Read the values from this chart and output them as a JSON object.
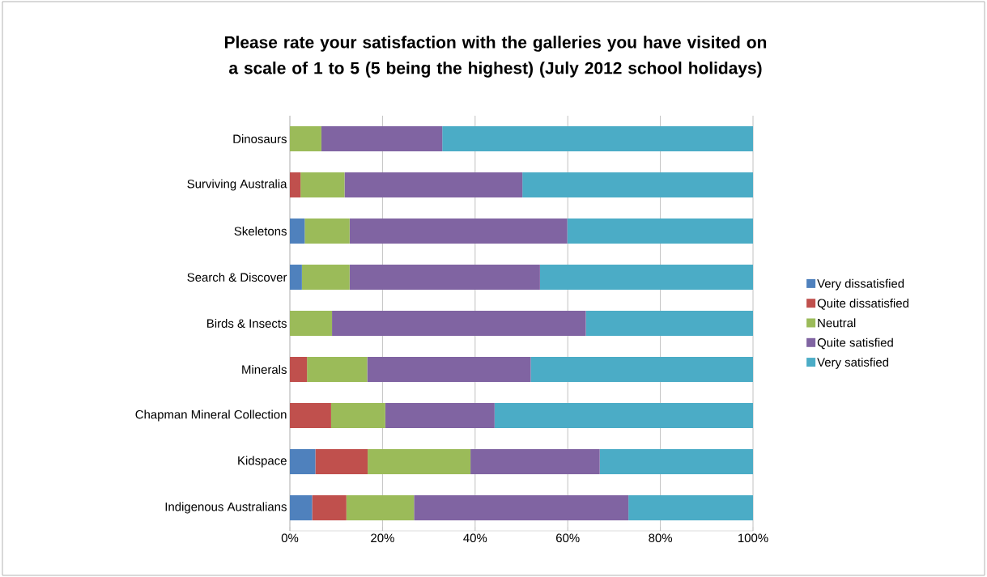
{
  "chart_data": {
    "type": "bar",
    "orientation": "horizontal",
    "stacked": true,
    "title": "Please rate your satisfaction with the galleries you have visited on a scale of 1 to 5 (5 being the highest) (July 2012 school holidays)",
    "categories": [
      "Dinosaurs",
      "Surviving Australia",
      "Skeletons",
      "Search & Discover",
      "Birds & Insects",
      "Minerals",
      "Chapman Mineral Collection",
      "Kidspace",
      "Indigenous Australians"
    ],
    "series": [
      {
        "name": "Very dissatisfied",
        "color": "#4f81bd",
        "values": [
          0,
          0,
          3.2,
          2.6,
          0,
          0,
          0,
          5.5,
          4.8
        ]
      },
      {
        "name": "Quite dissatisfied",
        "color": "#c0504d",
        "values": [
          0,
          2.3,
          0,
          0,
          0,
          3.7,
          8.9,
          11.3,
          7.4
        ]
      },
      {
        "name": "Neutral",
        "color": "#9bbb59",
        "values": [
          6.8,
          9.5,
          9.7,
          10.3,
          9.1,
          13.0,
          11.7,
          22.2,
          14.6
        ]
      },
      {
        "name": "Quite satisfied",
        "color": "#8064a2",
        "values": [
          26.1,
          38.4,
          47.0,
          41.1,
          54.8,
          35.3,
          23.6,
          27.9,
          46.3
        ]
      },
      {
        "name": "Very satisfied",
        "color": "#4bacc6",
        "values": [
          67.1,
          49.8,
          40.1,
          46.0,
          36.1,
          48.0,
          55.8,
          33.1,
          26.9
        ]
      }
    ],
    "xlim": [
      0,
      100
    ],
    "xticks": [
      {
        "value": 0,
        "label": "0%"
      },
      {
        "value": 20,
        "label": "20%"
      },
      {
        "value": 40,
        "label": "40%"
      },
      {
        "value": 60,
        "label": "60%"
      },
      {
        "value": 80,
        "label": "80%"
      },
      {
        "value": 100,
        "label": "100%"
      }
    ],
    "grid": "x",
    "legend": "right"
  }
}
